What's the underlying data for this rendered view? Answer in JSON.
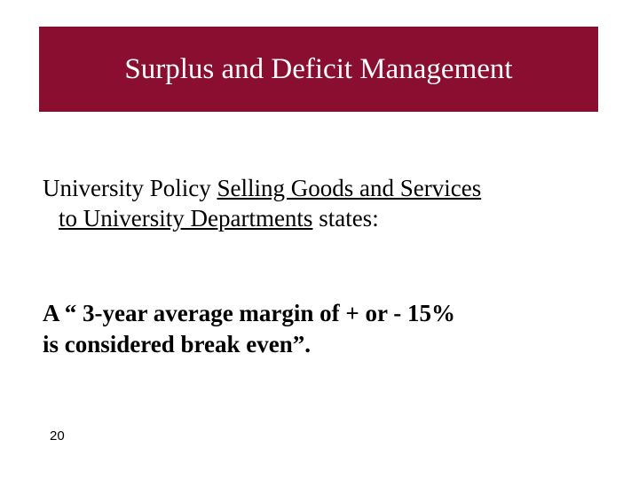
{
  "slide": {
    "title_bar": {
      "text": "Surplus and Deficit Management",
      "background_color": "#8a0e2f",
      "text_color": "#ffffff",
      "font_size_pt": 32
    },
    "policy": {
      "prefix": "University Policy ",
      "link_text_line1": "Selling Goods and Services",
      "link_text_line2": "to University Departments",
      "suffix": " states:",
      "font_size_pt": 27
    },
    "quote": {
      "line1": "A “ 3-year average margin of + or - 15%",
      "line2": "is considered break even”.",
      "font_size_pt": 27,
      "font_weight": "bold"
    },
    "page_number": "20",
    "background_color": "#ffffff"
  }
}
